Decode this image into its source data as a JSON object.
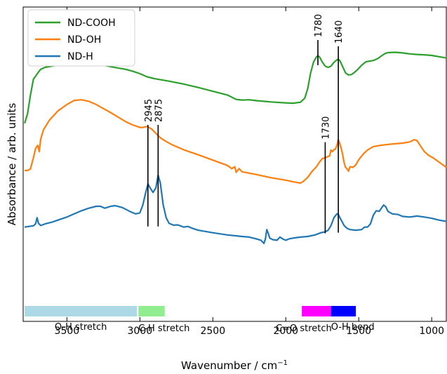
{
  "chart_data": {
    "type": "line",
    "xlabel": "Wavenumber / cm",
    "xlabel_sup": "−1",
    "ylabel": "Absorbance / arb. units",
    "xlim": [
      3800,
      900
    ],
    "x_inverted": true,
    "x_ticks": [
      3500,
      3000,
      2500,
      2000,
      1500,
      1000
    ],
    "y_tick_labels": false,
    "legend": {
      "placement": "top-left"
    },
    "series": [
      {
        "name": "ND-COOH",
        "color": "#2ca02c",
        "points": [
          [
            3790,
            0.63
          ],
          [
            3770,
            0.66
          ],
          [
            3750,
            0.72
          ],
          [
            3730,
            0.77
          ],
          [
            3700,
            0.79
          ],
          [
            3680,
            0.802
          ],
          [
            3650,
            0.808
          ],
          [
            3600,
            0.812
          ],
          [
            3550,
            0.818
          ],
          [
            3500,
            0.822
          ],
          [
            3450,
            0.823
          ],
          [
            3400,
            0.822
          ],
          [
            3350,
            0.82
          ],
          [
            3300,
            0.818
          ],
          [
            3250,
            0.815
          ],
          [
            3200,
            0.81
          ],
          [
            3150,
            0.806
          ],
          [
            3100,
            0.802
          ],
          [
            3050,
            0.796
          ],
          [
            3000,
            0.788
          ],
          [
            2950,
            0.778
          ],
          [
            2900,
            0.772
          ],
          [
            2800,
            0.764
          ],
          [
            2700,
            0.755
          ],
          [
            2600,
            0.744
          ],
          [
            2500,
            0.732
          ],
          [
            2400,
            0.72
          ],
          [
            2340,
            0.706
          ],
          [
            2300,
            0.704
          ],
          [
            2250,
            0.705
          ],
          [
            2200,
            0.702
          ],
          [
            2100,
            0.698
          ],
          [
            2000,
            0.695
          ],
          [
            1950,
            0.694
          ],
          [
            1900,
            0.697
          ],
          [
            1870,
            0.71
          ],
          [
            1850,
            0.74
          ],
          [
            1830,
            0.79
          ],
          [
            1810,
            0.825
          ],
          [
            1790,
            0.841
          ],
          [
            1780,
            0.845
          ],
          [
            1770,
            0.842
          ],
          [
            1750,
            0.825
          ],
          [
            1730,
            0.812
          ],
          [
            1710,
            0.808
          ],
          [
            1690,
            0.812
          ],
          [
            1670,
            0.824
          ],
          [
            1650,
            0.832
          ],
          [
            1640,
            0.834
          ],
          [
            1630,
            0.83
          ],
          [
            1610,
            0.81
          ],
          [
            1590,
            0.79
          ],
          [
            1570,
            0.784
          ],
          [
            1550,
            0.785
          ],
          [
            1530,
            0.792
          ],
          [
            1510,
            0.8
          ],
          [
            1480,
            0.815
          ],
          [
            1450,
            0.826
          ],
          [
            1400,
            0.83
          ],
          [
            1370,
            0.836
          ],
          [
            1340,
            0.846
          ],
          [
            1320,
            0.852
          ],
          [
            1300,
            0.855
          ],
          [
            1250,
            0.856
          ],
          [
            1200,
            0.854
          ],
          [
            1150,
            0.851
          ],
          [
            1100,
            0.849
          ],
          [
            1050,
            0.848
          ],
          [
            1000,
            0.846
          ],
          [
            950,
            0.842
          ],
          [
            900,
            0.838
          ]
        ]
      },
      {
        "name": "ND-OH",
        "color": "#ff7f0e",
        "points": [
          [
            3790,
            0.48
          ],
          [
            3770,
            0.48
          ],
          [
            3750,
            0.485
          ],
          [
            3730,
            0.52
          ],
          [
            3715,
            0.55
          ],
          [
            3700,
            0.56
          ],
          [
            3690,
            0.54
          ],
          [
            3680,
            0.58
          ],
          [
            3660,
            0.61
          ],
          [
            3620,
            0.64
          ],
          [
            3560,
            0.67
          ],
          [
            3500,
            0.69
          ],
          [
            3450,
            0.703
          ],
          [
            3400,
            0.705
          ],
          [
            3350,
            0.7
          ],
          [
            3300,
            0.69
          ],
          [
            3250,
            0.677
          ],
          [
            3200,
            0.664
          ],
          [
            3150,
            0.65
          ],
          [
            3100,
            0.636
          ],
          [
            3050,
            0.625
          ],
          [
            3000,
            0.617
          ],
          [
            2980,
            0.617
          ],
          [
            2950,
            0.62
          ],
          [
            2920,
            0.612
          ],
          [
            2890,
            0.598
          ],
          [
            2860,
            0.584
          ],
          [
            2820,
            0.572
          ],
          [
            2780,
            0.562
          ],
          [
            2700,
            0.546
          ],
          [
            2600,
            0.53
          ],
          [
            2500,
            0.513
          ],
          [
            2400,
            0.496
          ],
          [
            2370,
            0.486
          ],
          [
            2350,
            0.492
          ],
          [
            2340,
            0.474
          ],
          [
            2320,
            0.486
          ],
          [
            2300,
            0.476
          ],
          [
            2200,
            0.467
          ],
          [
            2100,
            0.457
          ],
          [
            2000,
            0.449
          ],
          [
            1950,
            0.444
          ],
          [
            1900,
            0.44
          ],
          [
            1880,
            0.445
          ],
          [
            1850,
            0.458
          ],
          [
            1820,
            0.477
          ],
          [
            1790,
            0.492
          ],
          [
            1770,
            0.506
          ],
          [
            1750,
            0.518
          ],
          [
            1730,
            0.52
          ],
          [
            1710,
            0.525
          ],
          [
            1700,
            0.526
          ],
          [
            1690,
            0.545
          ],
          [
            1680,
            0.54
          ],
          [
            1670,
            0.546
          ],
          [
            1660,
            0.548
          ],
          [
            1650,
            0.56
          ],
          [
            1640,
            0.578
          ],
          [
            1630,
            0.566
          ],
          [
            1620,
            0.55
          ],
          [
            1610,
            0.53
          ],
          [
            1600,
            0.505
          ],
          [
            1590,
            0.49
          ],
          [
            1580,
            0.485
          ],
          [
            1570,
            0.478
          ],
          [
            1560,
            0.492
          ],
          [
            1540,
            0.49
          ],
          [
            1520,
            0.498
          ],
          [
            1500,
            0.514
          ],
          [
            1470,
            0.532
          ],
          [
            1440,
            0.545
          ],
          [
            1400,
            0.556
          ],
          [
            1350,
            0.56
          ],
          [
            1300,
            0.563
          ],
          [
            1250,
            0.565
          ],
          [
            1200,
            0.567
          ],
          [
            1150,
            0.571
          ],
          [
            1120,
            0.578
          ],
          [
            1100,
            0.575
          ],
          [
            1080,
            0.56
          ],
          [
            1050,
            0.54
          ],
          [
            1020,
            0.528
          ],
          [
            990,
            0.52
          ],
          [
            960,
            0.51
          ],
          [
            930,
            0.5
          ],
          [
            900,
            0.49
          ]
        ]
      },
      {
        "name": "ND-H",
        "color": "#1f77b4",
        "points": [
          [
            3790,
            0.3
          ],
          [
            3760,
            0.302
          ],
          [
            3730,
            0.304
          ],
          [
            3715,
            0.31
          ],
          [
            3705,
            0.33
          ],
          [
            3695,
            0.312
          ],
          [
            3680,
            0.305
          ],
          [
            3650,
            0.31
          ],
          [
            3600,
            0.316
          ],
          [
            3550,
            0.324
          ],
          [
            3500,
            0.332
          ],
          [
            3450,
            0.342
          ],
          [
            3400,
            0.352
          ],
          [
            3350,
            0.36
          ],
          [
            3300,
            0.366
          ],
          [
            3270,
            0.366
          ],
          [
            3240,
            0.36
          ],
          [
            3200,
            0.366
          ],
          [
            3170,
            0.368
          ],
          [
            3120,
            0.362
          ],
          [
            3070,
            0.35
          ],
          [
            3030,
            0.342
          ],
          [
            3000,
            0.345
          ],
          [
            2980,
            0.37
          ],
          [
            2960,
            0.41
          ],
          [
            2945,
            0.437
          ],
          [
            2930,
            0.425
          ],
          [
            2910,
            0.41
          ],
          [
            2890,
            0.425
          ],
          [
            2875,
            0.465
          ],
          [
            2860,
            0.44
          ],
          [
            2840,
            0.37
          ],
          [
            2820,
            0.33
          ],
          [
            2800,
            0.312
          ],
          [
            2770,
            0.306
          ],
          [
            2740,
            0.307
          ],
          [
            2700,
            0.3
          ],
          [
            2670,
            0.302
          ],
          [
            2640,
            0.296
          ],
          [
            2600,
            0.29
          ],
          [
            2500,
            0.282
          ],
          [
            2400,
            0.275
          ],
          [
            2300,
            0.27
          ],
          [
            2250,
            0.268
          ],
          [
            2200,
            0.262
          ],
          [
            2170,
            0.258
          ],
          [
            2150,
            0.248
          ],
          [
            2140,
            0.262
          ],
          [
            2130,
            0.292
          ],
          [
            2120,
            0.28
          ],
          [
            2110,
            0.265
          ],
          [
            2090,
            0.26
          ],
          [
            2060,
            0.258
          ],
          [
            2040,
            0.268
          ],
          [
            2020,
            0.262
          ],
          [
            2000,
            0.258
          ],
          [
            1980,
            0.262
          ],
          [
            1950,
            0.265
          ],
          [
            1900,
            0.268
          ],
          [
            1850,
            0.27
          ],
          [
            1800,
            0.275
          ],
          [
            1760,
            0.282
          ],
          [
            1730,
            0.285
          ],
          [
            1710,
            0.29
          ],
          [
            1690,
            0.305
          ],
          [
            1670,
            0.33
          ],
          [
            1650,
            0.342
          ],
          [
            1640,
            0.34
          ],
          [
            1620,
            0.322
          ],
          [
            1600,
            0.305
          ],
          [
            1580,
            0.296
          ],
          [
            1560,
            0.292
          ],
          [
            1520,
            0.29
          ],
          [
            1480,
            0.292
          ],
          [
            1460,
            0.3
          ],
          [
            1440,
            0.3
          ],
          [
            1420,
            0.31
          ],
          [
            1400,
            0.338
          ],
          [
            1380,
            0.352
          ],
          [
            1360,
            0.35
          ],
          [
            1345,
            0.36
          ],
          [
            1330,
            0.37
          ],
          [
            1315,
            0.365
          ],
          [
            1300,
            0.35
          ],
          [
            1270,
            0.342
          ],
          [
            1230,
            0.34
          ],
          [
            1200,
            0.334
          ],
          [
            1150,
            0.332
          ],
          [
            1100,
            0.335
          ],
          [
            1050,
            0.332
          ],
          [
            1000,
            0.328
          ],
          [
            950,
            0.322
          ],
          [
            900,
            0.318
          ]
        ]
      }
    ],
    "annotations": [
      {
        "label": "1780",
        "x": 1780,
        "y_top": 0.895,
        "y_bottom": 0.815
      },
      {
        "label": "1640",
        "x": 1640,
        "y_top": 0.875,
        "y_bottom": 0.282
      },
      {
        "label": "2945",
        "x": 2945,
        "y_top": 0.625,
        "y_bottom": 0.302
      },
      {
        "label": "2875",
        "x": 2875,
        "y_top": 0.625,
        "y_bottom": 0.302
      },
      {
        "label": "1730",
        "x": 1730,
        "y_top": 0.57,
        "y_bottom": 0.28
      }
    ],
    "regions": [
      {
        "label": "O-H stretch",
        "from": 3790,
        "to": 3020,
        "color": "#add8e6"
      },
      {
        "label": "C-H stretch",
        "from": 3010,
        "to": 2830,
        "color": "#90ee90"
      },
      {
        "label": "C=O stretch",
        "from": 1890,
        "to": 1690,
        "color": "#ff00ff"
      },
      {
        "label": "O-H bend",
        "from": 1690,
        "to": 1520,
        "color": "#0000ff"
      }
    ]
  }
}
